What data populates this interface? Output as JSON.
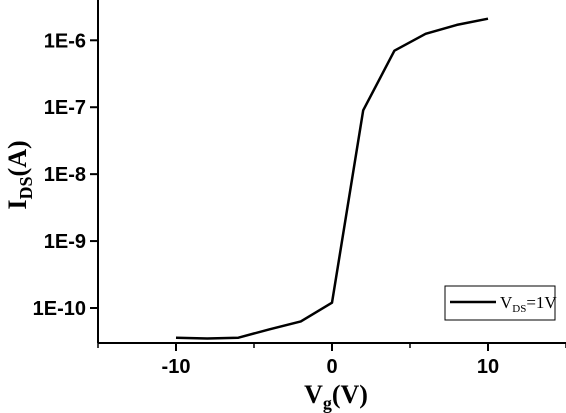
{
  "chart_data": {
    "type": "line",
    "xlabel": {
      "main": "V",
      "sub": "g",
      "unit": "(V)"
    },
    "ylabel": {
      "main": "I",
      "sub": "DS",
      "unit": "(A)"
    },
    "xlim": [
      -15,
      15
    ],
    "ylim": [
      3e-11,
      4e-06
    ],
    "yscale": "log",
    "x_ticks": [
      -10,
      0,
      10
    ],
    "x_tick_labels": [
      "-10",
      "0",
      "10"
    ],
    "y_ticks": [
      1e-10,
      1e-09,
      1e-08,
      1e-07,
      1e-06
    ],
    "y_tick_labels": [
      "1E-10",
      "1E-9",
      "1E-8",
      "1E-7",
      "1E-6"
    ],
    "grid": false,
    "legend_position": "bottom-right",
    "series": [
      {
        "legend": {
          "main": "V",
          "sub": "DS",
          "suffix": "=1V"
        },
        "color": "#000000",
        "x": [
          -10,
          -8,
          -6,
          -4,
          -2,
          0,
          2,
          4,
          6,
          8,
          10
        ],
        "y": [
          3.6e-11,
          3.5e-11,
          3.6e-11,
          4.8e-11,
          6.3e-11,
          1.2e-10,
          9e-08,
          7e-07,
          1.25e-06,
          1.7e-06,
          2.1e-06
        ]
      }
    ]
  }
}
